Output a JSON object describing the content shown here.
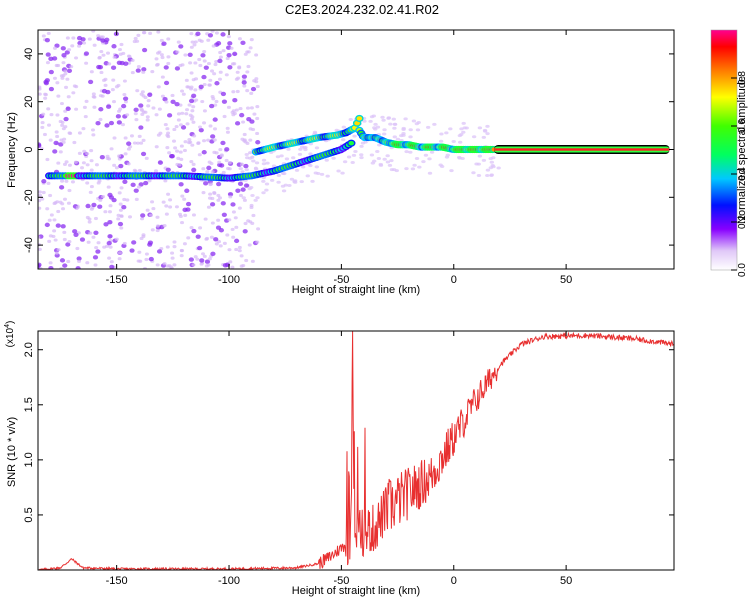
{
  "title": "C2E3.2024.232.02.41.R02",
  "chart_data": [
    {
      "type": "heatmap",
      "xlabel": "Height of straight line (km)",
      "ylabel": "Frequency (Hz)",
      "xlim": [
        -185,
        98
      ],
      "ylim": [
        -50,
        50
      ],
      "xticks": [
        -150,
        -100,
        -50,
        0,
        50
      ],
      "yticks": [
        -40,
        -20,
        0,
        20,
        40
      ],
      "colorbar": {
        "label": "Normalized spectral amplitude",
        "range": [
          0,
          1
        ],
        "ticks": [
          0.0,
          0.2,
          0.4,
          0.6,
          0.8
        ],
        "tick_labels": [
          "0.0",
          "0.2",
          "0.4",
          "0.6",
          "0.8"
        ]
      },
      "ridge_low": {
        "x": [
          -180,
          -160,
          -140,
          -120,
          -100,
          -90,
          -80,
          -70,
          -60,
          -50,
          -45
        ],
        "y": [
          -11,
          -11,
          -11,
          -11,
          -12,
          -11,
          -9,
          -6,
          -3,
          0,
          3
        ]
      },
      "ridge_high": {
        "x": [
          -88,
          -80,
          -70,
          -60,
          -52,
          -48,
          -44,
          -42
        ],
        "y": [
          -1,
          1,
          3,
          5,
          6,
          7,
          9,
          13
        ]
      },
      "ridge_main": {
        "x": [
          -42,
          -40,
          -35,
          -30,
          -25,
          -20,
          -15,
          -10,
          -5,
          0,
          10,
          20,
          50,
          96
        ],
        "y": [
          8,
          5,
          5,
          3,
          2,
          2,
          1,
          1,
          1,
          0,
          0,
          0,
          0,
          0
        ]
      },
      "noise_region_x": [
        -185,
        -95
      ]
    },
    {
      "type": "line",
      "xlabel": "Height of straight line (km)",
      "ylabel": "SNR (10 * v/v)",
      "scale_label": "(x10",
      "scale_exponent": "4",
      "xlim": [
        -185,
        98
      ],
      "ylim": [
        0,
        2.17
      ],
      "xticks": [
        -150,
        -100,
        -50,
        0,
        50
      ],
      "yticks": [
        0.5,
        1.0,
        1.5,
        2.0
      ],
      "ytick_labels": [
        "0.5",
        "1.0",
        "1.5",
        "2.0"
      ],
      "line_color": "#e83030",
      "series_profile": {
        "x": [
          -185,
          -175,
          -170,
          -165,
          -150,
          -100,
          -70,
          -60,
          -55,
          -50,
          -45,
          -40,
          -35,
          -30,
          -20,
          -10,
          0,
          10,
          20,
          30,
          40,
          60,
          80,
          98
        ],
        "y": [
          0.0,
          0.02,
          0.1,
          0.02,
          0.01,
          0.01,
          0.02,
          0.06,
          0.12,
          0.2,
          0.3,
          0.35,
          0.38,
          0.55,
          0.7,
          0.85,
          1.2,
          1.55,
          1.85,
          2.05,
          2.12,
          2.13,
          2.1,
          2.05
        ]
      }
    }
  ]
}
